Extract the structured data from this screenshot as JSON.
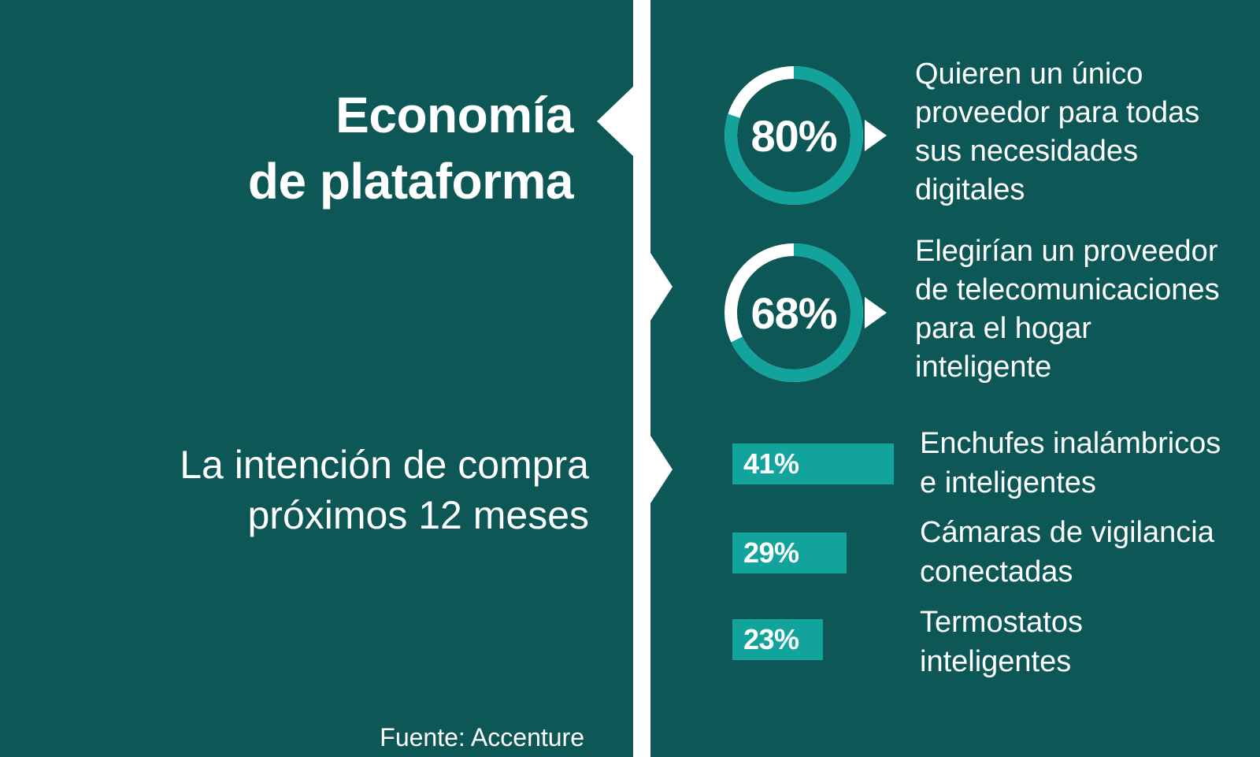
{
  "title": {
    "line1": "Economía",
    "line2": "de plataforma"
  },
  "intent_label": {
    "line1": "La intención de compra",
    "line2": "próximos 12 meses"
  },
  "source": "Fuente: Accenture",
  "colors": {
    "background": "#0d5856",
    "accent": "#12a39d",
    "foreground": "#ffffff"
  },
  "chart_data": [
    {
      "type": "pie",
      "variant": "donut",
      "items": [
        {
          "label": "80%",
          "value": 80,
          "text": [
            "Quieren un único",
            "proveedor para todas",
            "sus necesidades",
            "digitales"
          ]
        },
        {
          "label": "68%",
          "value": 68,
          "text": [
            "Elegirían un proveedor",
            "de telecomunicaciones",
            "para el hogar",
            "inteligente"
          ]
        }
      ]
    },
    {
      "type": "bar",
      "orientation": "horizontal",
      "categories": [
        "Enchufes inalámbricos e inteligentes",
        "Cámaras de vigilancia conectadas",
        "Termostatos inteligentes"
      ],
      "values": [
        41,
        29,
        23
      ],
      "value_labels": [
        "41%",
        "29%",
        "23%"
      ],
      "category_lines": [
        [
          "Enchufes inalámbricos",
          "e inteligentes"
        ],
        [
          "Cámaras de vigilancia",
          "conectadas"
        ],
        [
          "Termostatos",
          "inteligentes"
        ]
      ]
    }
  ]
}
